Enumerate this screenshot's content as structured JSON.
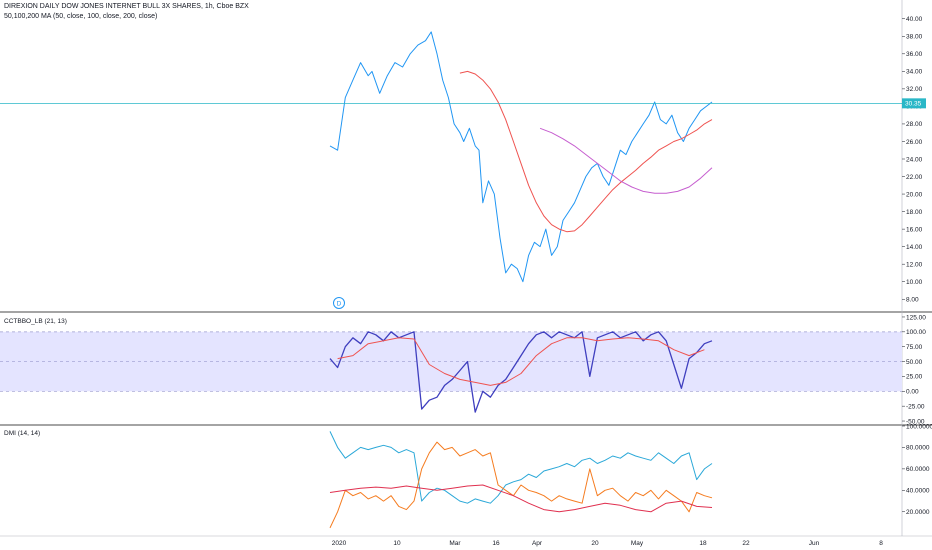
{
  "header": {
    "symbol_line": "DIREXION DAILY DOW JONES INTERNET BULL 3X SHARES, 1h, Cboe BZX",
    "ma_line": "50,100,200 MA (50, close, 100, close, 200, close)"
  },
  "colors": {
    "price": "#2196f3",
    "ma_red": "#ef5350",
    "ma_pink": "#c65ecf",
    "cctbbo": "#3f3fbf",
    "cctbbo_signal": "#ef5350",
    "band_fill": "#e4e4ff",
    "dmi_plus": "#2ba8d8",
    "dmi_minus": "#f57c20",
    "adx": "#e0304f",
    "last_price_line": "#2ab7c7",
    "candle_down": "#e91e63"
  },
  "x_axis": {
    "labels": [
      "2020",
      "10",
      "Mar",
      "16",
      "Apr",
      "20",
      "May",
      "18",
      "22",
      "Jun",
      "8"
    ],
    "icon_label": "D"
  },
  "chart_data": [
    {
      "type": "line",
      "title": "DIREXION DAILY DOW JONES INTERNET BULL 3X SHARES, 1h, Cboe BZX",
      "ylim": [
        7,
        41
      ],
      "yticks": [
        "40.00",
        "38.00",
        "36.00",
        "34.00",
        "32.00",
        "30.00",
        "28.00",
        "26.00",
        "24.00",
        "22.00",
        "20.00",
        "18.00",
        "16.00",
        "14.00",
        "12.00",
        "10.00",
        "8.00"
      ],
      "last_price": "30.35",
      "last_value": 30.35,
      "x_domain": [
        0,
        100
      ],
      "series": [
        {
          "name": "Price",
          "x": [
            0,
            2,
            4,
            6,
            8,
            10,
            11,
            13,
            15,
            17,
            19,
            21,
            23,
            25,
            26.5,
            28,
            29.5,
            31,
            32.5,
            34,
            35,
            36.5,
            38,
            39,
            40,
            41.5,
            43,
            44.5,
            46,
            47.5,
            49,
            50.5,
            52,
            53.5,
            55,
            56.5,
            58,
            59.5,
            61,
            62.5,
            64,
            65.5,
            67,
            68.5,
            70,
            71.5,
            73,
            74.5,
            76,
            77.5,
            79,
            80.5,
            82,
            83.5,
            85,
            86.5,
            88,
            89.5,
            91,
            92.5,
            94,
            95.5,
            97,
            98.5,
            100
          ],
          "values": [
            25.5,
            25,
            31,
            33,
            35,
            33.5,
            34,
            31.5,
            33.5,
            35,
            34.5,
            36,
            37,
            37.5,
            38.5,
            36,
            33,
            31,
            28,
            27,
            26,
            27.5,
            25.5,
            25,
            19,
            21.5,
            20,
            15,
            11,
            12,
            11.5,
            10,
            13,
            14.5,
            14,
            16,
            13,
            14,
            17,
            18,
            19,
            20.5,
            22,
            23,
            23.5,
            22,
            21,
            23,
            25,
            24.5,
            26,
            27,
            28,
            29,
            30.5,
            28.5,
            28,
            29,
            27,
            26,
            27.5,
            28.5,
            29.5,
            30,
            30.5
          ]
        },
        {
          "name": "MA 50",
          "x": [
            34,
            36,
            38,
            40,
            42,
            44,
            46,
            48,
            50,
            52,
            54,
            56,
            58,
            60,
            62,
            64,
            66,
            68,
            70,
            72,
            74,
            76,
            78,
            80,
            82,
            84,
            86,
            88,
            90,
            92,
            94,
            96,
            98,
            100
          ],
          "values": [
            33.8,
            34,
            33.7,
            33,
            32,
            30.5,
            28.5,
            26,
            23.5,
            21,
            19,
            17.5,
            16.5,
            16,
            15.7,
            15.8,
            16.5,
            17.5,
            18.5,
            19.5,
            20.5,
            21.3,
            22,
            22.7,
            23.5,
            24.2,
            25,
            25.5,
            26,
            26.3,
            26.8,
            27.3,
            28,
            28.5
          ]
        },
        {
          "name": "MA 100",
          "x": [
            55,
            58,
            61,
            64,
            67,
            70,
            73,
            76,
            79,
            82,
            85,
            88,
            91,
            94,
            97,
            100
          ],
          "values": [
            27.5,
            27,
            26.3,
            25.5,
            24.5,
            23.5,
            22.5,
            21.5,
            20.8,
            20.3,
            20.1,
            20.1,
            20.3,
            20.8,
            21.8,
            23
          ]
        }
      ]
    },
    {
      "type": "line",
      "title": "CCTBBO_LB (21, 13)",
      "ylim": [
        -55,
        130
      ],
      "yticks": [
        "125.00",
        "100.00",
        "75.00",
        "50.00",
        "25.00",
        "0.00",
        "-25.00",
        "-50.00"
      ],
      "band": [
        0,
        100
      ],
      "dashed_levels": [
        0,
        50,
        100
      ],
      "x_domain": [
        0,
        100
      ],
      "series": [
        {
          "name": "CCTBBO",
          "x": [
            0,
            2,
            4,
            6,
            8,
            10,
            12,
            14,
            16,
            18,
            20,
            22,
            24,
            26,
            28,
            30,
            32,
            34,
            36,
            38,
            40,
            42,
            44,
            46,
            48,
            50,
            52,
            54,
            56,
            58,
            60,
            62,
            64,
            66,
            68,
            70,
            72,
            74,
            76,
            78,
            80,
            82,
            84,
            86,
            88,
            90,
            92,
            94,
            96,
            98,
            100
          ],
          "values": [
            55,
            40,
            75,
            90,
            80,
            100,
            95,
            85,
            100,
            90,
            95,
            100,
            -30,
            -15,
            -10,
            10,
            20,
            35,
            50,
            -35,
            0,
            -10,
            10,
            20,
            40,
            60,
            80,
            95,
            100,
            90,
            100,
            95,
            90,
            100,
            25,
            90,
            95,
            100,
            90,
            95,
            100,
            85,
            95,
            100,
            85,
            45,
            5,
            55,
            65,
            80,
            85
          ]
        },
        {
          "name": "Signal",
          "x": [
            2,
            6,
            10,
            14,
            18,
            22,
            26,
            30,
            34,
            38,
            42,
            46,
            50,
            54,
            58,
            62,
            66,
            70,
            74,
            78,
            82,
            86,
            90,
            94,
            98
          ],
          "values": [
            55,
            60,
            80,
            85,
            90,
            88,
            45,
            30,
            20,
            15,
            10,
            15,
            30,
            60,
            80,
            90,
            90,
            85,
            88,
            90,
            88,
            85,
            70,
            60,
            70
          ]
        }
      ]
    },
    {
      "type": "line",
      "title": "DMI (14, 14)",
      "ylim": [
        3,
        100
      ],
      "yticks": [
        "100.0000",
        "80.0000",
        "60.0000",
        "40.0000",
        "20.0000"
      ],
      "x_domain": [
        0,
        100
      ],
      "series": [
        {
          "name": "+DI",
          "x": [
            0,
            2,
            4,
            6,
            8,
            10,
            12,
            14,
            16,
            18,
            20,
            22,
            24,
            26,
            28,
            30,
            32,
            34,
            36,
            38,
            40,
            42,
            44,
            46,
            48,
            50,
            52,
            54,
            56,
            58,
            60,
            62,
            64,
            66,
            68,
            70,
            72,
            74,
            76,
            78,
            80,
            82,
            84,
            86,
            88,
            90,
            92,
            94,
            96,
            98,
            100
          ],
          "values": [
            95,
            80,
            70,
            75,
            80,
            78,
            80,
            82,
            80,
            75,
            78,
            75,
            30,
            38,
            42,
            40,
            35,
            30,
            28,
            32,
            30,
            28,
            35,
            45,
            48,
            50,
            55,
            52,
            58,
            60,
            62,
            65,
            62,
            68,
            70,
            65,
            68,
            72,
            70,
            75,
            72,
            70,
            68,
            75,
            70,
            65,
            72,
            75,
            50,
            60,
            65
          ]
        },
        {
          "name": "-DI",
          "x": [
            0,
            2,
            4,
            6,
            8,
            10,
            12,
            14,
            16,
            18,
            20,
            22,
            24,
            26,
            28,
            30,
            32,
            34,
            36,
            38,
            40,
            42,
            44,
            46,
            48,
            50,
            52,
            54,
            56,
            58,
            60,
            62,
            64,
            66,
            68,
            70,
            72,
            74,
            76,
            78,
            80,
            82,
            84,
            86,
            88,
            90,
            92,
            94,
            96,
            98,
            100
          ],
          "values": [
            5,
            20,
            40,
            35,
            38,
            32,
            35,
            30,
            35,
            25,
            22,
            30,
            60,
            75,
            85,
            78,
            80,
            72,
            75,
            78,
            72,
            75,
            45,
            40,
            35,
            45,
            40,
            38,
            35,
            30,
            35,
            32,
            30,
            28,
            60,
            35,
            40,
            42,
            35,
            30,
            38,
            35,
            40,
            32,
            40,
            35,
            30,
            20,
            38,
            35,
            33
          ]
        },
        {
          "name": "ADX",
          "x": [
            0,
            4,
            8,
            12,
            16,
            20,
            24,
            28,
            32,
            36,
            40,
            44,
            48,
            52,
            56,
            60,
            64,
            68,
            72,
            76,
            80,
            84,
            88,
            92,
            96,
            100
          ],
          "values": [
            38,
            40,
            42,
            43,
            42,
            44,
            42,
            40,
            42,
            44,
            45,
            40,
            35,
            28,
            22,
            20,
            22,
            25,
            28,
            26,
            22,
            20,
            28,
            30,
            25,
            24
          ]
        }
      ]
    }
  ]
}
